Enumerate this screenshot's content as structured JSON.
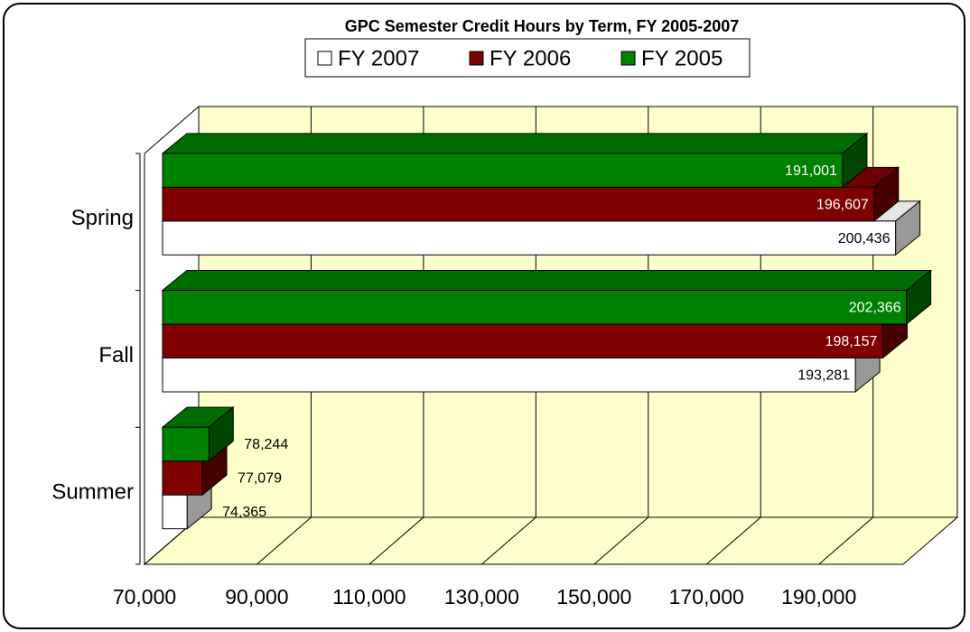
{
  "chart_data": {
    "type": "bar3d-horizontal",
    "title": "GPC Semester Credit Hours by Term, FY 2005-2007",
    "categories": [
      "Summer",
      "Fall",
      "Spring"
    ],
    "series": [
      {
        "name": "FY 2007",
        "color": "#ffffff",
        "values": [
          74365,
          193281,
          200436
        ],
        "value_labels": [
          "74,365",
          "193,281",
          "200,436"
        ]
      },
      {
        "name": "FY 2006",
        "color": "#800000",
        "values": [
          77079,
          198157,
          196607
        ],
        "value_labels": [
          "77,079",
          "198,157",
          "196,607"
        ]
      },
      {
        "name": "FY 2005",
        "color": "#008000",
        "values": [
          78244,
          202366,
          191001
        ],
        "value_labels": [
          "78,244",
          "202,366",
          "191,001"
        ]
      }
    ],
    "xlim": [
      70000,
      205000
    ],
    "xticks": [
      {
        "value": 70000,
        "label": "70,000"
      },
      {
        "value": 90000,
        "label": "90,000"
      },
      {
        "value": 110000,
        "label": "110,000"
      },
      {
        "value": 130000,
        "label": "130,000"
      },
      {
        "value": 150000,
        "label": "150,000"
      },
      {
        "value": 170000,
        "label": "170,000"
      },
      {
        "value": 190000,
        "label": "190,000"
      }
    ],
    "grid": true,
    "legend": "top"
  }
}
